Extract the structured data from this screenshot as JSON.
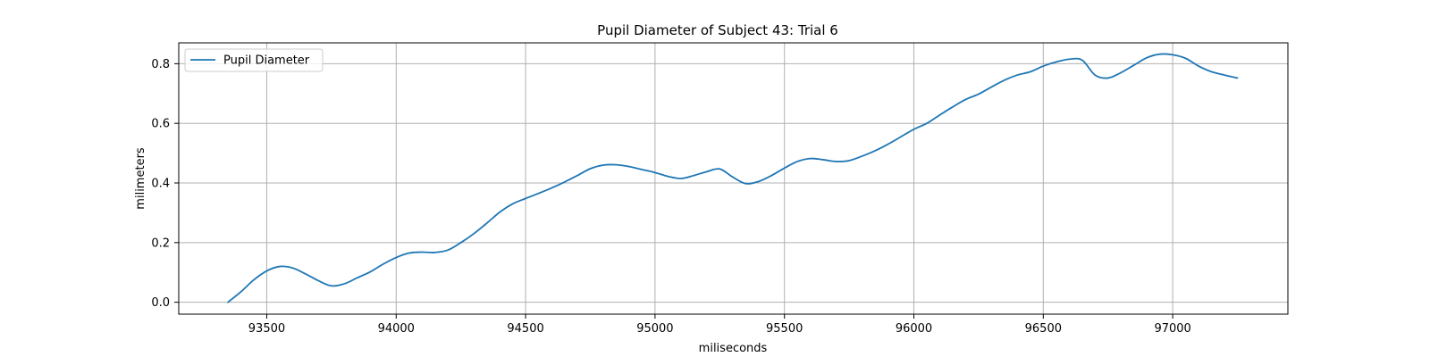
{
  "chart_data": {
    "type": "line",
    "title": "Pupil Diameter of Subject 43: Trial 6",
    "xlabel": "miliseconds",
    "ylabel": "milimeters",
    "xlim": [
      93160,
      97445
    ],
    "ylim": [
      -0.04,
      0.87
    ],
    "x_ticks": [
      93500,
      94000,
      94500,
      95000,
      95500,
      96000,
      96500,
      97000
    ],
    "y_ticks": [
      0.0,
      0.2,
      0.4,
      0.6,
      0.8
    ],
    "y_tick_labels": [
      "0.0",
      "0.2",
      "0.4",
      "0.6",
      "0.8"
    ],
    "grid": true,
    "legend_position": "upper-left",
    "colors": {
      "series": "#1f77b4",
      "grid": "#b0b0b0",
      "frame": "#000000"
    },
    "series": [
      {
        "name": "Pupil Diameter",
        "x": [
          93350,
          93400,
          93450,
          93500,
          93550,
          93600,
          93650,
          93700,
          93750,
          93800,
          93850,
          93900,
          93950,
          94000,
          94050,
          94100,
          94150,
          94200,
          94250,
          94300,
          94350,
          94400,
          94450,
          94500,
          94550,
          94600,
          94650,
          94700,
          94750,
          94800,
          94850,
          94900,
          94950,
          95000,
          95050,
          95100,
          95150,
          95200,
          95250,
          95300,
          95350,
          95400,
          95450,
          95500,
          95550,
          95600,
          95650,
          95700,
          95750,
          95800,
          95850,
          95900,
          95950,
          96000,
          96050,
          96100,
          96150,
          96200,
          96250,
          96300,
          96350,
          96400,
          96450,
          96500,
          96550,
          96600,
          96650,
          96700,
          96750,
          96800,
          96850,
          96900,
          96950,
          97000,
          97050,
          97100,
          97150,
          97200,
          97250
        ],
        "y": [
          0.0,
          0.035,
          0.075,
          0.105,
          0.12,
          0.115,
          0.095,
          0.072,
          0.055,
          0.062,
          0.082,
          0.102,
          0.128,
          0.15,
          0.165,
          0.168,
          0.167,
          0.175,
          0.2,
          0.23,
          0.265,
          0.302,
          0.33,
          0.348,
          0.365,
          0.383,
          0.403,
          0.425,
          0.448,
          0.46,
          0.461,
          0.455,
          0.445,
          0.435,
          0.422,
          0.415,
          0.425,
          0.438,
          0.447,
          0.42,
          0.398,
          0.405,
          0.425,
          0.45,
          0.472,
          0.482,
          0.478,
          0.472,
          0.475,
          0.49,
          0.508,
          0.53,
          0.555,
          0.58,
          0.6,
          0.628,
          0.655,
          0.68,
          0.698,
          0.722,
          0.745,
          0.762,
          0.773,
          0.792,
          0.806,
          0.815,
          0.812,
          0.762,
          0.752,
          0.77,
          0.795,
          0.82,
          0.832,
          0.83,
          0.818,
          0.792,
          0.773,
          0.762,
          0.752
        ]
      }
    ]
  }
}
